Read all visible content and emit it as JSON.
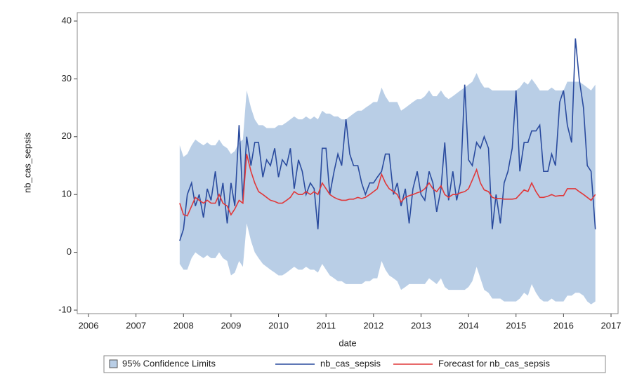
{
  "chart_data": {
    "type": "line",
    "x_label": "date",
    "y_label": "nb_cas_sepsis",
    "xlim": [
      2006,
      2017
    ],
    "xticks": [
      2006,
      2007,
      2008,
      2009,
      2010,
      2011,
      2012,
      2013,
      2014,
      2015,
      2016,
      2017
    ],
    "ylim": [
      -10,
      40
    ],
    "yticks": [
      -10,
      0,
      10,
      20,
      30,
      40
    ],
    "x": [
      2007.92,
      2008,
      2008.08,
      2008.17,
      2008.25,
      2008.33,
      2008.42,
      2008.5,
      2008.58,
      2008.67,
      2008.75,
      2008.83,
      2008.92,
      2009,
      2009.08,
      2009.17,
      2009.25,
      2009.33,
      2009.42,
      2009.5,
      2009.58,
      2009.67,
      2009.75,
      2009.83,
      2009.92,
      2010,
      2010.08,
      2010.17,
      2010.25,
      2010.33,
      2010.42,
      2010.5,
      2010.58,
      2010.67,
      2010.75,
      2010.83,
      2010.92,
      2011,
      2011.08,
      2011.17,
      2011.25,
      2011.33,
      2011.42,
      2011.5,
      2011.58,
      2011.67,
      2011.75,
      2011.83,
      2011.92,
      2012,
      2012.08,
      2012.17,
      2012.25,
      2012.33,
      2012.42,
      2012.5,
      2012.58,
      2012.67,
      2012.75,
      2012.83,
      2012.92,
      2013,
      2013.08,
      2013.17,
      2013.25,
      2013.33,
      2013.42,
      2013.5,
      2013.58,
      2013.67,
      2013.75,
      2013.83,
      2013.92,
      2014,
      2014.08,
      2014.17,
      2014.25,
      2014.33,
      2014.42,
      2014.5,
      2014.58,
      2014.67,
      2014.75,
      2014.83,
      2014.92,
      2015,
      2015.08,
      2015.17,
      2015.25,
      2015.33,
      2015.42,
      2015.5,
      2015.58,
      2015.67,
      2015.75,
      2015.83,
      2015.92,
      2016,
      2016.08,
      2016.17,
      2016.25,
      2016.33,
      2016.42,
      2016.5,
      2016.58,
      2016.67
    ],
    "series": [
      {
        "name": "95% Confidence Limits",
        "kind": "band",
        "color": "#b9cee6",
        "upper": [
          18.5,
          16.5,
          17,
          18.5,
          19.5,
          19,
          18.5,
          19,
          18.5,
          18.5,
          19.5,
          18.5,
          18,
          17,
          17.5,
          19,
          19.5,
          28,
          25,
          23,
          22,
          22,
          21.5,
          21.5,
          21.5,
          22,
          22,
          22.5,
          23,
          23.5,
          23,
          23,
          23.5,
          23,
          23.5,
          23,
          24.5,
          24,
          24,
          23.5,
          23.5,
          23,
          23,
          23.5,
          24,
          24.5,
          24.5,
          25,
          25.5,
          26,
          26,
          28.5,
          27,
          26,
          26,
          26,
          24.5,
          25,
          25.5,
          26,
          26.5,
          26.5,
          27,
          28,
          27,
          27,
          28,
          27,
          26.5,
          27,
          27.5,
          28,
          28.5,
          29,
          29.5,
          31,
          29.5,
          28.5,
          28.5,
          28,
          28,
          28,
          28,
          28,
          28,
          28,
          28.5,
          29.5,
          29,
          30,
          29,
          28,
          28,
          28,
          28.5,
          28,
          28,
          28,
          29.5,
          29.5,
          29.5,
          29.5,
          29,
          28.5,
          28,
          29
        ],
        "lower": [
          -2,
          -3,
          -3,
          -1,
          0,
          -0.5,
          -1,
          -0.5,
          -1,
          -1,
          0,
          -1,
          -1.5,
          -4,
          -3.5,
          -1.5,
          -2.5,
          5,
          2,
          0,
          -1,
          -2,
          -2.5,
          -3,
          -3.5,
          -4,
          -4,
          -3.5,
          -3,
          -2.5,
          -3,
          -3,
          -2.5,
          -3,
          -3,
          -3.5,
          -2,
          -3,
          -4,
          -4.5,
          -5,
          -5,
          -5.5,
          -5.5,
          -5.5,
          -5.5,
          -5.5,
          -5,
          -5,
          -4.5,
          -4.5,
          -1.5,
          -3,
          -4,
          -4.5,
          -5,
          -6.5,
          -6,
          -5.5,
          -5.5,
          -5.5,
          -5.5,
          -5.5,
          -4.5,
          -5,
          -5.5,
          -4.5,
          -6,
          -6.5,
          -6.5,
          -6.5,
          -6.5,
          -6.5,
          -6,
          -5,
          -2.5,
          -4.5,
          -6.5,
          -7,
          -8,
          -8,
          -8,
          -8.5,
          -8.5,
          -8.5,
          -8.5,
          -8,
          -7,
          -7.5,
          -5.5,
          -7,
          -8,
          -8.5,
          -8.5,
          -8,
          -8.5,
          -8.5,
          -8.5,
          -7.5,
          -7.5,
          -7,
          -7,
          -7.5,
          -8.5,
          -9,
          -8.5
        ]
      },
      {
        "name": "nb_cas_sepsis",
        "kind": "line",
        "color": "#2a4b9e",
        "values": [
          2,
          4,
          10,
          12,
          8,
          10,
          6,
          11,
          9,
          14,
          8,
          12,
          5,
          12,
          8,
          22,
          9,
          20,
          15,
          19,
          19,
          13,
          16,
          15,
          18,
          13,
          16,
          15,
          18,
          11,
          16,
          14,
          10,
          12,
          11,
          4,
          18,
          18,
          10,
          14,
          17,
          15,
          23,
          17,
          15,
          15,
          12,
          10,
          12,
          12,
          13,
          14,
          17,
          17,
          10,
          12,
          8,
          11,
          5,
          11,
          14,
          10,
          9,
          14,
          12,
          7,
          11,
          19,
          9,
          14,
          9,
          12,
          29,
          16,
          15,
          19,
          18,
          20,
          18,
          4,
          10,
          5,
          12,
          14,
          18,
          28,
          14,
          19,
          19,
          21,
          21,
          22,
          14,
          14,
          17,
          15,
          26,
          28,
          22,
          19,
          37,
          30,
          25,
          15,
          14,
          4
        ]
      },
      {
        "name": "Forecast for nb_cas_sepsis",
        "kind": "line",
        "color": "#e0383a",
        "values": [
          8.5,
          6.5,
          6.3,
          8,
          9.5,
          9,
          8.5,
          9,
          8.5,
          8.5,
          10,
          8.5,
          8,
          6.5,
          7.5,
          9,
          8.5,
          17,
          14,
          12,
          10.5,
          10,
          9.5,
          9,
          8.8,
          8.5,
          8.5,
          9,
          9.5,
          10.5,
          10,
          10,
          10.5,
          10,
          10.5,
          10,
          12,
          11,
          10,
          9.5,
          9.2,
          9,
          9,
          9.2,
          9.2,
          9.5,
          9.3,
          9.5,
          10,
          10.5,
          11,
          13.5,
          12,
          11,
          10.5,
          10,
          8.7,
          9.5,
          9.8,
          10,
          10.3,
          10.5,
          11,
          12,
          11,
          10.5,
          11.5,
          10,
          9.5,
          10,
          10,
          10.3,
          10.5,
          11,
          12.5,
          14.3,
          12,
          10.8,
          10.5,
          9.5,
          9.3,
          9.3,
          9.2,
          9.2,
          9.2,
          9.3,
          10,
          10.8,
          10.5,
          12,
          10.5,
          9.5,
          9.5,
          9.7,
          10,
          9.7,
          9.8,
          9.8,
          11,
          11,
          11,
          10.5,
          10,
          9.5,
          9,
          10
        ]
      }
    ]
  }
}
